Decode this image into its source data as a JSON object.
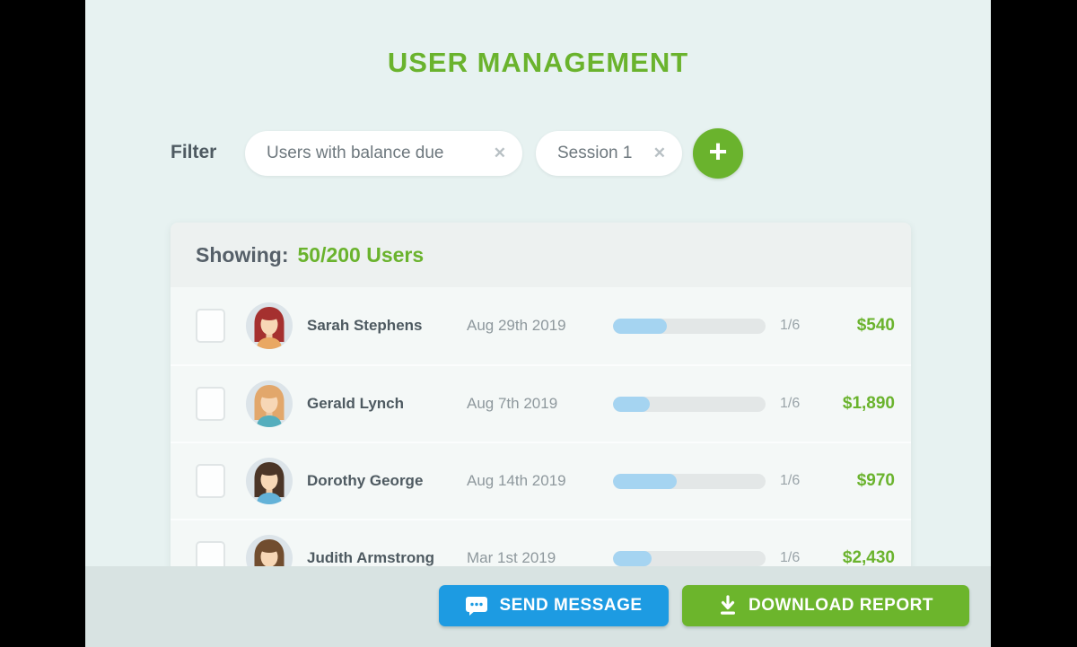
{
  "header": {
    "title": "USER MANAGEMENT"
  },
  "filter": {
    "label": "Filter",
    "chips": [
      {
        "label": "Users with balance due",
        "close_icon": "✕"
      },
      {
        "label": "Session 1",
        "close_icon": "✕"
      }
    ],
    "add_button_icon": "+"
  },
  "panel": {
    "showing_label": "Showing:",
    "showing_value": "50/200 Users"
  },
  "users": [
    {
      "name": "Sarah Stephens",
      "date": "Aug 29th 2019",
      "sessions": "1/6",
      "progress_pct": 35,
      "amount": "$540",
      "avatar": {
        "hair": "#a5302f",
        "shirt": "#e9a863"
      }
    },
    {
      "name": "Gerald Lynch",
      "date": "Aug 7th 2019",
      "sessions": "1/6",
      "progress_pct": 24,
      "amount": "$1,890",
      "avatar": {
        "hair": "#e2a76b",
        "shirt": "#55aebd"
      }
    },
    {
      "name": "Dorothy George",
      "date": "Aug 14th 2019",
      "sessions": "1/6",
      "progress_pct": 42,
      "amount": "$970",
      "avatar": {
        "hair": "#4b3527",
        "shirt": "#63b2d8"
      }
    },
    {
      "name": "Judith Armstrong",
      "date": "Mar 1st 2019",
      "sessions": "1/6",
      "progress_pct": 25,
      "amount": "$2,430",
      "avatar": {
        "hair": "#714d2f",
        "shirt": "#63b2d8"
      }
    }
  ],
  "footer": {
    "send_message_label": "SEND MESSAGE",
    "download_report_label": "DOWNLOAD REPORT"
  },
  "colors": {
    "accent_green": "#6ab32d",
    "accent_blue": "#1d9be2",
    "page_bg": "#e7f2f1",
    "footer_bg": "#d8e3e2",
    "panel_header_bg": "#edf1f0",
    "row_bg": "#f4f8f7",
    "progress_fill": "#a5d4f1",
    "progress_track": "#e3e7e7"
  }
}
